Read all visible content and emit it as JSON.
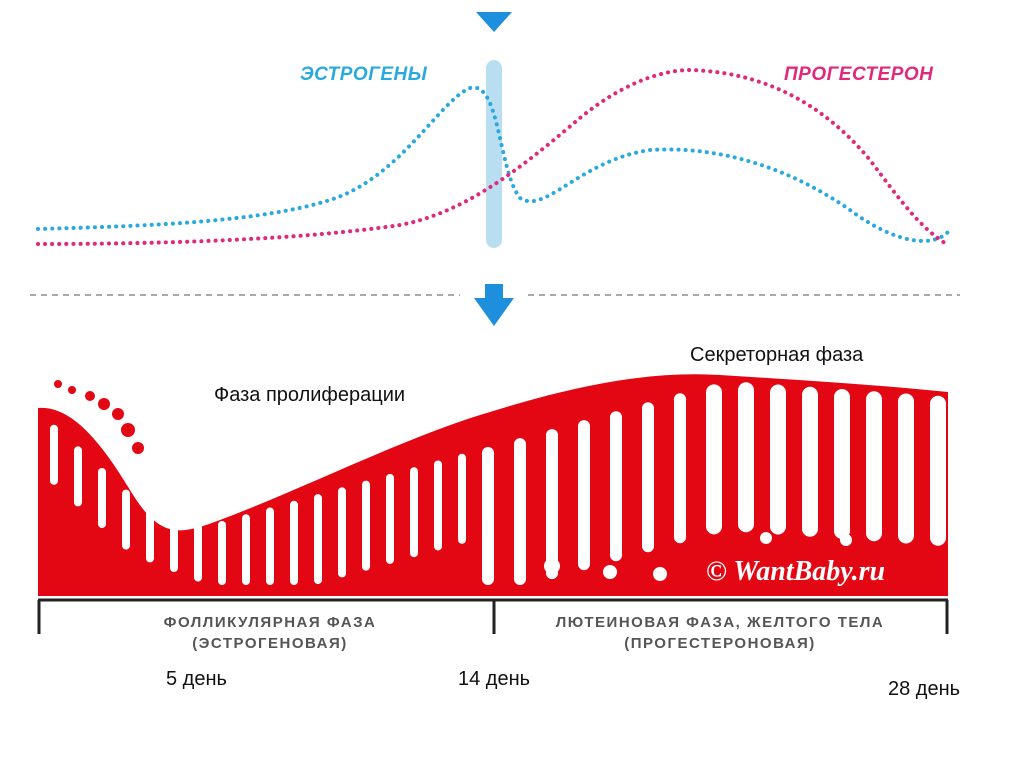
{
  "hormones": {
    "estrogen": {
      "label": "ЭСТРОГЕНЫ",
      "color": "#2aa9df"
    },
    "progesterone": {
      "label": "ПРОГЕСТЕРОН",
      "color": "#e0297d"
    }
  },
  "phases": {
    "proliferation_label": "Фаза пролиферации",
    "secretory_label": "Секреторная фаза",
    "follicular_line1": "ФОЛЛИКУЛЯРНАЯ ФАЗА",
    "follicular_line2": "(ЭСТРОГЕНОВАЯ)",
    "luteal_line1": "ЛЮТЕИНОВАЯ ФАЗА, ЖЕЛТОГО ТЕЛА",
    "luteal_line2": "(ПРОГЕСТЕРОНОВАЯ)"
  },
  "days": {
    "day5": "5 день",
    "day14": "14 день",
    "day28": "28 день"
  },
  "watermark": "© WantBaby.ru",
  "colors": {
    "endometrium": "#e30613",
    "ovulation_marker": "#b9def2",
    "arrow": "#1e8fdc",
    "divider": "#aaaaaa",
    "bracket": "#222222"
  }
}
